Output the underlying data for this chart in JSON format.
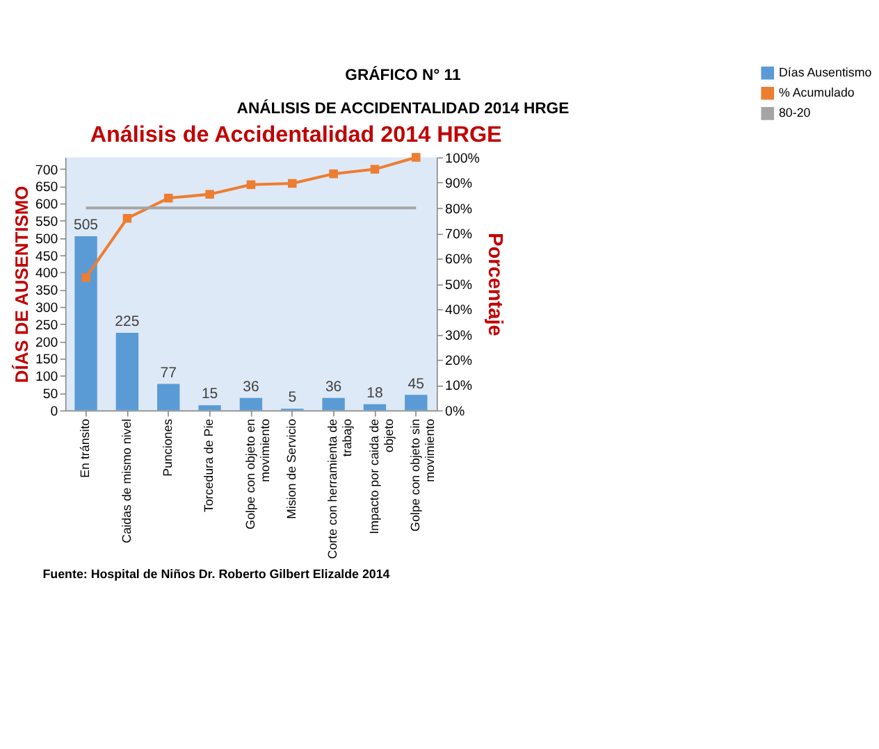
{
  "chart_data": {
    "type": "bar",
    "title": "Análisis de Accidentalidad 2014 HRGE",
    "ylabel": "DÍAS DE AUSENTISMO",
    "y2label": "Porcentaje",
    "annotations": [
      "GRÁFICO N° 11",
      "ANÁLISIS DE ACCIDENTALIDAD 2014 HRGE",
      "Fuente: Hospital de Niños Dr. Roberto Gilbert Elizalde 2014"
    ],
    "categories": [
      "En tránsito",
      "Caidas de mismo nivel",
      "Punciones",
      "Torcedura de Pie",
      "Golpe con objeto en movimiento",
      "Mision de Servicio",
      "Corte con herramienta de trabajo",
      "Impacto por caida de objeto",
      "Golpe con objeto sin movimiento"
    ],
    "series": [
      {
        "name": "Días Ausentismo",
        "color": "#5b9bd5",
        "values": [
          505,
          225,
          77,
          15,
          36,
          5,
          36,
          18,
          45
        ],
        "value_labels": [
          "505",
          "225",
          "77",
          "15",
          "36",
          "5",
          "36",
          "18",
          "45"
        ]
      },
      {
        "name": "% Acumulado",
        "type": "line",
        "axis": "y2",
        "color": "#ed7d31",
        "marker": "square",
        "values": [
          52.5,
          75.9,
          83.9,
          85.4,
          89.2,
          89.7,
          93.5,
          95.3,
          100
        ]
      },
      {
        "name": "80-20",
        "type": "line",
        "axis": "y2",
        "color": "#a5a5a5",
        "marker": "none",
        "values": [
          80,
          80,
          80,
          80,
          80,
          80,
          80,
          80,
          80
        ]
      }
    ],
    "ylim": [
      0,
      734
    ],
    "yticks": [
      0,
      50,
      100,
      150,
      200,
      250,
      300,
      350,
      400,
      450,
      500,
      550,
      600,
      650,
      700
    ],
    "y2lim": [
      0,
      100
    ],
    "y2ticks": [
      {
        "value": 0,
        "label": "0%"
      },
      {
        "value": 10,
        "label": "10%"
      },
      {
        "value": 20,
        "label": "20%"
      },
      {
        "value": 30,
        "label": "30%"
      },
      {
        "value": 40,
        "label": "40%"
      },
      {
        "value": 50,
        "label": "50%"
      },
      {
        "value": 60,
        "label": "60%"
      },
      {
        "value": 70,
        "label": "70%"
      },
      {
        "value": 80,
        "label": "80%"
      },
      {
        "value": 90,
        "label": "90%"
      },
      {
        "value": 100,
        "label": "100%"
      }
    ],
    "grid": false,
    "legend": "right",
    "line_style": "solid"
  }
}
